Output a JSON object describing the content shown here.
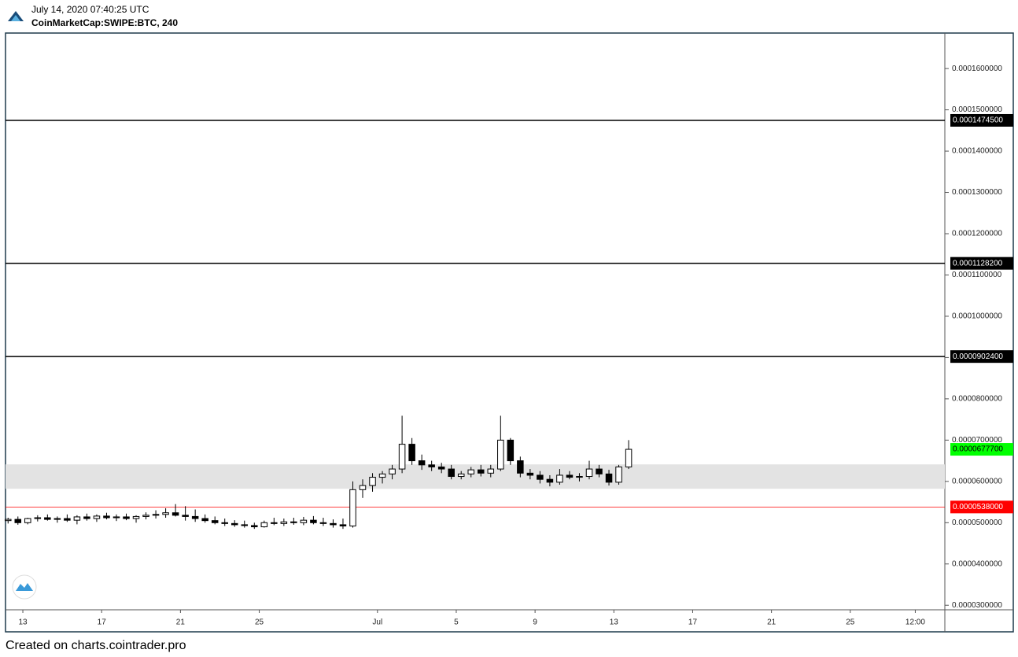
{
  "header": {
    "timestamp": "July 14, 2020 07:40:25 UTC",
    "symbol": "CoinMarketCap:SWIPE:BTC, 240"
  },
  "footer": "Created on charts.cointrader.pro",
  "chart_data": {
    "type": "candlestick",
    "up_color": "#ffffff",
    "down_color": "#000000",
    "xlim": [
      -0.88,
      46.8
    ],
    "xticks": [
      {
        "value": 0,
        "label": "13"
      },
      {
        "value": 4,
        "label": "17"
      },
      {
        "value": 8,
        "label": "21"
      },
      {
        "value": 12,
        "label": "25"
      },
      {
        "value": 18,
        "label": "Jul"
      },
      {
        "value": 22,
        "label": "5"
      },
      {
        "value": 26,
        "label": "9"
      },
      {
        "value": 30,
        "label": "13"
      },
      {
        "value": 34,
        "label": "17"
      },
      {
        "value": 38,
        "label": "21"
      },
      {
        "value": 42,
        "label": "25"
      },
      {
        "value": 45.3,
        "label": "12:00"
      }
    ],
    "ylim": [
      2.89e-05,
      0.0001686
    ],
    "yticks": [
      {
        "value": 3e-05,
        "label": "0.0000300000"
      },
      {
        "value": 4e-05,
        "label": "0.0000400000"
      },
      {
        "value": 5e-05,
        "label": "0.0000500000"
      },
      {
        "value": 6e-05,
        "label": "0.0000600000"
      },
      {
        "value": 7e-05,
        "label": "0.0000700000"
      },
      {
        "value": 8e-05,
        "label": "0.0000800000"
      },
      {
        "value": 9e-05,
        "label": "0.0000900000"
      },
      {
        "value": 0.0001,
        "label": "0.0001000000"
      },
      {
        "value": 0.00011,
        "label": "0.0001100000"
      },
      {
        "value": 0.00012,
        "label": "0.0001200000"
      },
      {
        "value": 0.00013,
        "label": "0.0001300000"
      },
      {
        "value": 0.00014,
        "label": "0.0001400000"
      },
      {
        "value": 0.00015,
        "label": "0.0001500000"
      },
      {
        "value": 0.00016,
        "label": "0.0001600000"
      }
    ],
    "zone": {
      "range": [
        5.821e-05,
        6.412e-05
      ],
      "color": "#e3e3e3"
    },
    "levels": [
      {
        "value": 0.00014745,
        "label": "0.0001474500",
        "color": "#000000"
      },
      {
        "value": 0.00011282,
        "label": "0.0001128200",
        "color": "#000000"
      },
      {
        "value": 9.024e-05,
        "label": "0.0000902400",
        "color": "#000000"
      },
      {
        "value": 5.38e-05,
        "label": "0.0000538000",
        "color": "#ff0000"
      }
    ],
    "last_price": {
      "value": 6.777e-05,
      "label": "0.0000677700",
      "color": "#00ff00"
    },
    "x": [
      -0.75,
      -0.25,
      0.25,
      0.75,
      1.25,
      1.75,
      2.25,
      2.75,
      3.25,
      3.75,
      4.25,
      4.75,
      5.25,
      5.75,
      6.25,
      6.75,
      7.25,
      7.75,
      8.25,
      8.75,
      9.25,
      9.75,
      10.25,
      10.75,
      11.25,
      11.75,
      12.25,
      12.75,
      13.25,
      13.75,
      14.25,
      14.75,
      15.25,
      15.75,
      16.25,
      16.75,
      17.25,
      17.75,
      18.25,
      18.75,
      19.25,
      19.75,
      20.25,
      20.75,
      21.25,
      21.75,
      22.25,
      22.75,
      23.25,
      23.75,
      24.25,
      24.75,
      25.25,
      25.75,
      26.25,
      26.75,
      27.25,
      27.75,
      28.25,
      28.75,
      29.25,
      29.75,
      30.25,
      30.75
    ],
    "open": [
      5.05e-05,
      5.08e-05,
      5e-05,
      5.1e-05,
      5.12e-05,
      5.08e-05,
      5.1e-05,
      5.06e-05,
      5.14e-05,
      5.1e-05,
      5.16e-05,
      5.12e-05,
      5.14e-05,
      5.1e-05,
      5.15e-05,
      5.18e-05,
      5.2e-05,
      5.24e-05,
      5.18e-05,
      5.15e-05,
      5.1e-05,
      5.05e-05,
      5e-05,
      4.98e-05,
      4.95e-05,
      4.93e-05,
      4.9e-05,
      5e-05,
      4.98e-05,
      5.02e-05,
      5e-05,
      5.06e-05,
      5e-05,
      4.98e-05,
      4.95e-05,
      4.92e-05,
      5.8e-05,
      5.9e-05,
      6.1e-05,
      6.18e-05,
      6.3e-05,
      6.9e-05,
      6.5e-05,
      6.4e-05,
      6.35e-05,
      6.3e-05,
      6.12e-05,
      6.18e-05,
      6.28e-05,
      6.2e-05,
      6.3e-05,
      7e-05,
      6.5e-05,
      6.2e-05,
      6.15e-05,
      6.05e-05,
      5.98e-05,
      6.15e-05,
      6.1e-05,
      6.12e-05,
      6.3e-05,
      6.18e-05,
      5.98e-05,
      6.35e-05
    ],
    "high": [
      5.12e-05,
      5.15e-05,
      5.12e-05,
      5.18e-05,
      5.2e-05,
      5.15e-05,
      5.2e-05,
      5.18e-05,
      5.22e-05,
      5.2e-05,
      5.24e-05,
      5.2e-05,
      5.22e-05,
      5.18e-05,
      5.25e-05,
      5.3e-05,
      5.35e-05,
      5.45e-05,
      5.4e-05,
      5.32e-05,
      5.2e-05,
      5.15e-05,
      5.1e-05,
      5.06e-05,
      5.05e-05,
      5e-05,
      5.05e-05,
      5.12e-05,
      5.1e-05,
      5.12e-05,
      5.14e-05,
      5.16e-05,
      5.12e-05,
      5.08e-05,
      5.1e-05,
      6e-05,
      6.05e-05,
      6.2e-05,
      6.25e-05,
      6.4e-05,
      7.59e-05,
      7.05e-05,
      6.65e-05,
      6.5e-05,
      6.45e-05,
      6.4e-05,
      6.25e-05,
      6.35e-05,
      6.4e-05,
      6.4e-05,
      7.59e-05,
      7.05e-05,
      6.6e-05,
      6.3e-05,
      6.25e-05,
      6.15e-05,
      6.3e-05,
      6.25e-05,
      6.2e-05,
      6.5e-05,
      6.4e-05,
      6.28e-05,
      6.4e-05,
      7e-05
    ],
    "low": [
      4.98e-05,
      4.95e-05,
      4.96e-05,
      5.03e-05,
      5.05e-05,
      5e-05,
      5.02e-05,
      4.96e-05,
      5.05e-05,
      5.02e-05,
      5.08e-05,
      5.04e-05,
      5.06e-05,
      5e-05,
      5.08e-05,
      5.1e-05,
      5.12e-05,
      5.15e-05,
      5.05e-05,
      5.02e-05,
      5e-05,
      4.96e-05,
      4.92e-05,
      4.9e-05,
      4.88e-05,
      4.85e-05,
      4.88e-05,
      4.94e-05,
      4.92e-05,
      4.95e-05,
      4.94e-05,
      4.96e-05,
      4.92e-05,
      4.88e-05,
      4.85e-05,
      4.88e-05,
      5.6e-05,
      5.75e-05,
      5.95e-05,
      6.05e-05,
      6.2e-05,
      6.4e-05,
      6.28e-05,
      6.25e-05,
      6.2e-05,
      6.05e-05,
      6.05e-05,
      6.1e-05,
      6.12e-05,
      6.1e-05,
      6.25e-05,
      6.4e-05,
      6.1e-05,
      6.05e-05,
      5.95e-05,
      5.88e-05,
      5.92e-05,
      6.05e-05,
      6e-05,
      6.05e-05,
      6.1e-05,
      5.9e-05,
      5.92e-05,
      6.3e-05
    ],
    "close": [
      5.08e-05,
      5e-05,
      5.1e-05,
      5.12e-05,
      5.08e-05,
      5.1e-05,
      5.06e-05,
      5.14e-05,
      5.1e-05,
      5.16e-05,
      5.12e-05,
      5.14e-05,
      5.1e-05,
      5.15e-05,
      5.18e-05,
      5.2e-05,
      5.24e-05,
      5.18e-05,
      5.15e-05,
      5.1e-05,
      5.05e-05,
      5e-05,
      4.98e-05,
      4.95e-05,
      4.93e-05,
      4.9e-05,
      5e-05,
      4.98e-05,
      5.02e-05,
      5e-05,
      5.06e-05,
      5e-05,
      4.98e-05,
      4.95e-05,
      4.92e-05,
      5.8e-05,
      5.9e-05,
      6.1e-05,
      6.18e-05,
      6.3e-05,
      6.9e-05,
      6.5e-05,
      6.4e-05,
      6.35e-05,
      6.3e-05,
      6.12e-05,
      6.18e-05,
      6.28e-05,
      6.2e-05,
      6.3e-05,
      7e-05,
      6.5e-05,
      6.2e-05,
      6.15e-05,
      6.05e-05,
      5.98e-05,
      6.15e-05,
      6.1e-05,
      6.12e-05,
      6.3e-05,
      6.18e-05,
      5.98e-05,
      6.35e-05,
      6.777e-05
    ]
  }
}
